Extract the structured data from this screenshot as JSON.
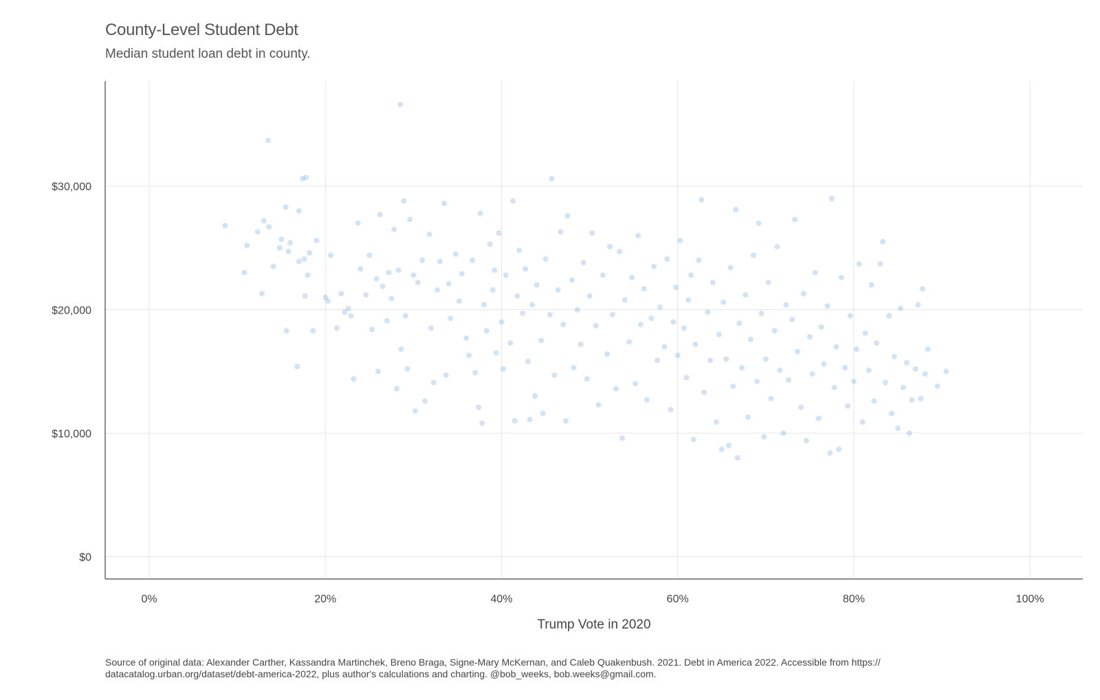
{
  "chart_data": {
    "type": "scatter",
    "title": "County-Level Student Debt",
    "subtitle": "Median student loan debt in county.",
    "xlabel": "Trump Vote in 2020",
    "ylabel": "",
    "caption": "Source of original data: Alexander Carther, Kassandra Martinchek, Breno Braga, Signe-Mary McKernan, and Caleb Quakenbush. 2021. Debt in America 2022. Accessible from https:// datacatalog.urban.org/dataset/debt-america-2022, plus author's calculations and charting. @bob_weeks, bob.weeks@gmail.com.",
    "xlim": [
      -0.05,
      1.06
    ],
    "ylim": [
      -1800,
      38500
    ],
    "x_ticks": [
      0,
      0.2,
      0.4,
      0.6,
      0.8,
      1.0
    ],
    "x_tick_labels": [
      "0%",
      "20%",
      "40%",
      "60%",
      "80%",
      "100%"
    ],
    "y_ticks": [
      0,
      10000,
      20000,
      30000
    ],
    "y_tick_labels": [
      "$0",
      "$10,000",
      "$20,000",
      "$30,000"
    ],
    "grid": true,
    "point_color": "#4a8fd4",
    "point_opacity": 0.25,
    "series": [
      {
        "points": [
          [
            0.086,
            26800
          ],
          [
            0.108,
            23000
          ],
          [
            0.111,
            25200
          ],
          [
            0.123,
            26300
          ],
          [
            0.128,
            21300
          ],
          [
            0.13,
            27200
          ],
          [
            0.135,
            33700
          ],
          [
            0.136,
            26700
          ],
          [
            0.141,
            23500
          ],
          [
            0.148,
            25000
          ],
          [
            0.15,
            25700
          ],
          [
            0.155,
            28300
          ],
          [
            0.156,
            18300
          ],
          [
            0.158,
            24700
          ],
          [
            0.16,
            25400
          ],
          [
            0.168,
            15400
          ],
          [
            0.17,
            28000
          ],
          [
            0.17,
            23900
          ],
          [
            0.174,
            30600
          ],
          [
            0.176,
            24100
          ],
          [
            0.177,
            21100
          ],
          [
            0.178,
            30700
          ],
          [
            0.18,
            22800
          ],
          [
            0.182,
            24600
          ],
          [
            0.186,
            18300
          ],
          [
            0.19,
            25600
          ],
          [
            0.2,
            21000
          ],
          [
            0.203,
            20700
          ],
          [
            0.206,
            24400
          ],
          [
            0.213,
            18500
          ],
          [
            0.218,
            21300
          ],
          [
            0.222,
            19800
          ],
          [
            0.226,
            20100
          ],
          [
            0.229,
            19500
          ],
          [
            0.232,
            14400
          ],
          [
            0.237,
            27000
          ],
          [
            0.24,
            23300
          ],
          [
            0.246,
            21200
          ],
          [
            0.25,
            24400
          ],
          [
            0.253,
            18400
          ],
          [
            0.258,
            22500
          ],
          [
            0.26,
            15000
          ],
          [
            0.262,
            27700
          ],
          [
            0.265,
            21900
          ],
          [
            0.27,
            19100
          ],
          [
            0.272,
            23000
          ],
          [
            0.275,
            20900
          ],
          [
            0.278,
            26500
          ],
          [
            0.281,
            13600
          ],
          [
            0.283,
            23200
          ],
          [
            0.285,
            36600
          ],
          [
            0.286,
            16800
          ],
          [
            0.289,
            28800
          ],
          [
            0.291,
            19500
          ],
          [
            0.293,
            15200
          ],
          [
            0.296,
            27300
          ],
          [
            0.3,
            22800
          ],
          [
            0.302,
            11800
          ],
          [
            0.305,
            22200
          ],
          [
            0.31,
            24000
          ],
          [
            0.313,
            12600
          ],
          [
            0.318,
            26100
          ],
          [
            0.32,
            18500
          ],
          [
            0.323,
            14100
          ],
          [
            0.327,
            21600
          ],
          [
            0.33,
            23900
          ],
          [
            0.335,
            28600
          ],
          [
            0.337,
            14700
          ],
          [
            0.34,
            22100
          ],
          [
            0.342,
            19300
          ],
          [
            0.348,
            24500
          ],
          [
            0.352,
            20700
          ],
          [
            0.355,
            22900
          ],
          [
            0.36,
            17700
          ],
          [
            0.363,
            16300
          ],
          [
            0.367,
            24000
          ],
          [
            0.37,
            14900
          ],
          [
            0.374,
            12100
          ],
          [
            0.376,
            27800
          ],
          [
            0.378,
            10800
          ],
          [
            0.38,
            20400
          ],
          [
            0.383,
            18300
          ],
          [
            0.387,
            25300
          ],
          [
            0.39,
            21600
          ],
          [
            0.392,
            23200
          ],
          [
            0.394,
            16500
          ],
          [
            0.397,
            26200
          ],
          [
            0.4,
            19000
          ],
          [
            0.402,
            15200
          ],
          [
            0.405,
            22800
          ],
          [
            0.41,
            17300
          ],
          [
            0.413,
            28800
          ],
          [
            0.415,
            11000
          ],
          [
            0.418,
            21100
          ],
          [
            0.42,
            24800
          ],
          [
            0.424,
            19700
          ],
          [
            0.427,
            23300
          ],
          [
            0.43,
            15800
          ],
          [
            0.432,
            11100
          ],
          [
            0.435,
            20400
          ],
          [
            0.438,
            13000
          ],
          [
            0.44,
            22000
          ],
          [
            0.445,
            17500
          ],
          [
            0.447,
            11600
          ],
          [
            0.45,
            24100
          ],
          [
            0.455,
            19600
          ],
          [
            0.457,
            30600
          ],
          [
            0.46,
            14700
          ],
          [
            0.464,
            21600
          ],
          [
            0.467,
            26300
          ],
          [
            0.47,
            18800
          ],
          [
            0.473,
            11000
          ],
          [
            0.475,
            27600
          ],
          [
            0.48,
            22400
          ],
          [
            0.482,
            15300
          ],
          [
            0.486,
            20000
          ],
          [
            0.49,
            17200
          ],
          [
            0.493,
            23800
          ],
          [
            0.497,
            14400
          ],
          [
            0.5,
            21100
          ],
          [
            0.503,
            26200
          ],
          [
            0.507,
            18700
          ],
          [
            0.51,
            12300
          ],
          [
            0.515,
            22800
          ],
          [
            0.52,
            16400
          ],
          [
            0.523,
            25100
          ],
          [
            0.526,
            19600
          ],
          [
            0.53,
            13600
          ],
          [
            0.534,
            24700
          ],
          [
            0.537,
            9600
          ],
          [
            0.54,
            20800
          ],
          [
            0.545,
            17400
          ],
          [
            0.548,
            22600
          ],
          [
            0.552,
            14000
          ],
          [
            0.555,
            26000
          ],
          [
            0.558,
            18800
          ],
          [
            0.562,
            21700
          ],
          [
            0.565,
            12700
          ],
          [
            0.57,
            19300
          ],
          [
            0.573,
            23500
          ],
          [
            0.577,
            15900
          ],
          [
            0.58,
            20200
          ],
          [
            0.585,
            17000
          ],
          [
            0.588,
            24100
          ],
          [
            0.592,
            11900
          ],
          [
            0.595,
            19000
          ],
          [
            0.598,
            21800
          ],
          [
            0.6,
            16300
          ],
          [
            0.603,
            25600
          ],
          [
            0.607,
            18500
          ],
          [
            0.61,
            14500
          ],
          [
            0.612,
            20800
          ],
          [
            0.615,
            22800
          ],
          [
            0.618,
            9500
          ],
          [
            0.62,
            17200
          ],
          [
            0.624,
            24000
          ],
          [
            0.627,
            28900
          ],
          [
            0.63,
            13300
          ],
          [
            0.634,
            19800
          ],
          [
            0.637,
            15900
          ],
          [
            0.64,
            22200
          ],
          [
            0.644,
            10900
          ],
          [
            0.647,
            18000
          ],
          [
            0.65,
            8700
          ],
          [
            0.652,
            20600
          ],
          [
            0.655,
            16000
          ],
          [
            0.658,
            9000
          ],
          [
            0.66,
            23400
          ],
          [
            0.663,
            13800
          ],
          [
            0.666,
            28100
          ],
          [
            0.668,
            8000
          ],
          [
            0.67,
            18900
          ],
          [
            0.673,
            15300
          ],
          [
            0.677,
            21200
          ],
          [
            0.68,
            11300
          ],
          [
            0.683,
            17600
          ],
          [
            0.686,
            24400
          ],
          [
            0.69,
            14200
          ],
          [
            0.692,
            27000
          ],
          [
            0.695,
            19700
          ],
          [
            0.698,
            9700
          ],
          [
            0.7,
            16000
          ],
          [
            0.703,
            22200
          ],
          [
            0.706,
            12800
          ],
          [
            0.71,
            18300
          ],
          [
            0.713,
            25100
          ],
          [
            0.716,
            15100
          ],
          [
            0.72,
            10000
          ],
          [
            0.723,
            20400
          ],
          [
            0.726,
            14300
          ],
          [
            0.73,
            19200
          ],
          [
            0.733,
            27300
          ],
          [
            0.736,
            16600
          ],
          [
            0.74,
            12100
          ],
          [
            0.743,
            21300
          ],
          [
            0.746,
            9400
          ],
          [
            0.75,
            17800
          ],
          [
            0.753,
            14800
          ],
          [
            0.756,
            23000
          ],
          [
            0.76,
            11200
          ],
          [
            0.763,
            18600
          ],
          [
            0.766,
            15600
          ],
          [
            0.77,
            20300
          ],
          [
            0.773,
            8400
          ],
          [
            0.775,
            29000
          ],
          [
            0.778,
            13700
          ],
          [
            0.78,
            17000
          ],
          [
            0.783,
            8700
          ],
          [
            0.786,
            22600
          ],
          [
            0.79,
            15300
          ],
          [
            0.793,
            12200
          ],
          [
            0.796,
            19500
          ],
          [
            0.8,
            14200
          ],
          [
            0.803,
            16800
          ],
          [
            0.806,
            23700
          ],
          [
            0.81,
            10900
          ],
          [
            0.813,
            18100
          ],
          [
            0.817,
            15100
          ],
          [
            0.82,
            22000
          ],
          [
            0.823,
            12600
          ],
          [
            0.826,
            17300
          ],
          [
            0.83,
            23700
          ],
          [
            0.833,
            25500
          ],
          [
            0.836,
            14100
          ],
          [
            0.84,
            19500
          ],
          [
            0.843,
            11600
          ],
          [
            0.846,
            16200
          ],
          [
            0.85,
            10400
          ],
          [
            0.853,
            20100
          ],
          [
            0.856,
            13700
          ],
          [
            0.86,
            15700
          ],
          [
            0.863,
            10000
          ],
          [
            0.866,
            12700
          ],
          [
            0.87,
            15200
          ],
          [
            0.873,
            20400
          ],
          [
            0.876,
            12800
          ],
          [
            0.878,
            21700
          ],
          [
            0.881,
            14800
          ],
          [
            0.884,
            16800
          ],
          [
            0.895,
            13800
          ],
          [
            0.905,
            15000
          ]
        ]
      }
    ]
  }
}
